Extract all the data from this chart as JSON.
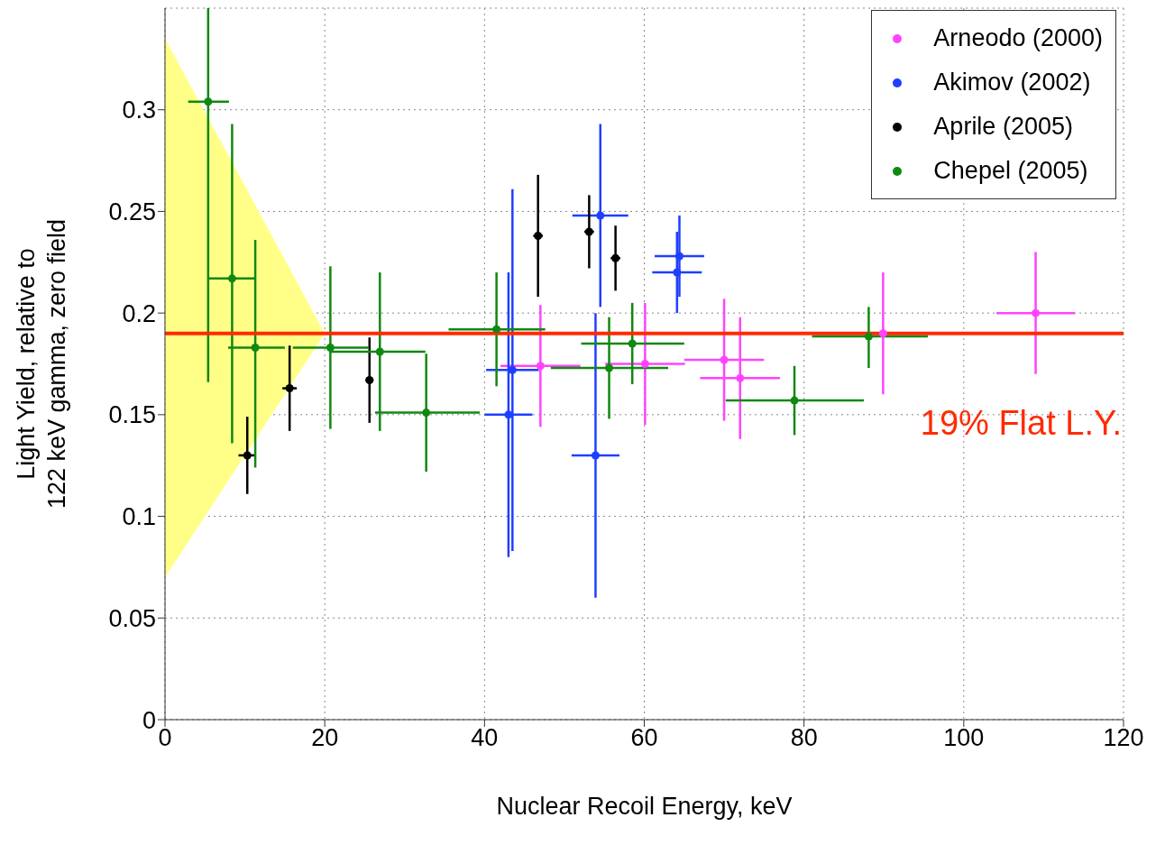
{
  "chart_data": {
    "type": "scatter",
    "xlabel": "Nuclear Recoil Energy, keV",
    "ylabel": "Light Yield, relative to\n122 keV gamma, zero field",
    "xlim": [
      0,
      120
    ],
    "xticks": [
      0,
      20,
      40,
      60,
      80,
      100,
      120
    ],
    "ylim": [
      0,
      0.35
    ],
    "yticks": [
      0,
      0.05,
      0.1,
      0.15,
      0.2,
      0.25,
      0.3
    ],
    "grid": true,
    "legend": "top right",
    "marker": "circle",
    "ref_lines": [
      {
        "axis": "y",
        "value": 0.19,
        "label": "19% Flat L.Y.",
        "color": "#ff2a00"
      }
    ],
    "series": [
      {
        "type": "area",
        "color": "#ffff88",
        "marker": "none",
        "x": [
          0,
          20
        ],
        "values": [
          null,
          null
        ],
        "lower": [
          0.07,
          0.19
        ],
        "upper": [
          0.335,
          0.19
        ]
      },
      {
        "name": "Arneodo (2000)",
        "color": "#ff44ff",
        "x": [
          47.0,
          60.1,
          70.0,
          72.0,
          89.9,
          109.0
        ],
        "values": [
          0.174,
          0.175,
          0.177,
          0.168,
          0.19,
          0.2
        ],
        "xerrors": [
          5.0,
          5.0,
          5.0,
          5.0,
          null,
          4.9
        ],
        "errors": [
          [
            0.144,
            0.204
          ],
          [
            0.145,
            0.205
          ],
          [
            0.147,
            0.207
          ],
          [
            0.138,
            0.198
          ],
          [
            0.16,
            0.22
          ],
          [
            0.17,
            0.23
          ]
        ]
      },
      {
        "name": "Akimov (2002)",
        "color": "#1f3fff",
        "x": [
          43.5,
          43.0,
          54.5,
          53.9,
          64.4,
          64.1
        ],
        "values": [
          0.172,
          0.15,
          0.248,
          0.13,
          0.228,
          0.22
        ],
        "xerrors": [
          3.3,
          3.0,
          3.5,
          3.0,
          3.1,
          3.1
        ],
        "errors": [
          [
            0.083,
            0.261
          ],
          [
            0.08,
            0.22
          ],
          [
            0.203,
            0.293
          ],
          [
            0.06,
            0.2
          ],
          [
            0.208,
            0.248
          ],
          [
            0.2,
            0.24
          ]
        ]
      },
      {
        "name": "Aprile (2005)",
        "color": "#000000",
        "x": [
          10.3,
          15.6,
          25.6,
          46.7,
          53.1,
          56.4
        ],
        "values": [
          0.13,
          0.163,
          0.167,
          0.238,
          0.24,
          0.227
        ],
        "xerrors": [
          1.1,
          0.9,
          0.5,
          0.6,
          0.6,
          0.6
        ],
        "errors": [
          [
            0.111,
            0.149
          ],
          [
            0.142,
            0.184
          ],
          [
            0.146,
            0.188
          ],
          [
            0.208,
            0.268
          ],
          [
            0.222,
            0.258
          ],
          [
            0.211,
            0.243
          ]
        ]
      },
      {
        "name": "Chepel (2005)",
        "color": "#118811",
        "x": [
          5.4,
          8.4,
          11.3,
          20.7,
          26.9,
          32.7,
          41.5,
          55.6,
          58.5,
          78.8,
          88.1
        ],
        "values": [
          0.304,
          0.217,
          0.183,
          0.183,
          0.181,
          0.151,
          0.192,
          0.173,
          0.185,
          0.157,
          0.1885
        ],
        "xerrors": [
          [
            2.9,
            8.0
          ],
          [
            5.3,
            11.4
          ],
          [
            7.9,
            15.0
          ],
          [
            16.0,
            25.5
          ],
          [
            20.7,
            32.6
          ],
          [
            26.3,
            39.4
          ],
          [
            35.5,
            47.6
          ],
          [
            48.3,
            63.0
          ],
          [
            52.1,
            65.0
          ],
          [
            70.2,
            87.5
          ],
          [
            81.0,
            95.5
          ]
        ],
        "errors": [
          [
            0.166,
            0.35
          ],
          [
            0.136,
            0.293
          ],
          [
            0.124,
            0.236
          ],
          [
            0.143,
            0.223
          ],
          [
            0.142,
            0.22
          ],
          [
            0.122,
            0.18
          ],
          [
            0.164,
            0.22
          ],
          [
            0.148,
            0.198
          ],
          [
            0.165,
            0.205
          ],
          [
            0.14,
            0.174
          ],
          [
            0.173,
            0.203
          ]
        ]
      }
    ]
  }
}
